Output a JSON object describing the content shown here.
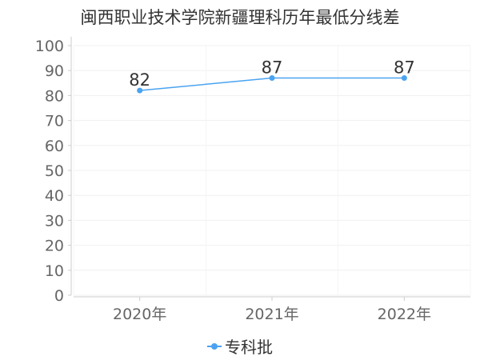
{
  "chart_data": {
    "type": "line",
    "title": "闽西职业技术学院新疆理科历年最低分线差",
    "xlabel": "",
    "ylabel": "",
    "categories": [
      "2020年",
      "2021年",
      "2022年"
    ],
    "ylim": [
      0,
      100
    ],
    "yticks": [
      "0",
      "10",
      "20",
      "30",
      "40",
      "50",
      "60",
      "70",
      "80",
      "90",
      "100"
    ],
    "grid": true,
    "legend_position": "bottom",
    "series": [
      {
        "name": "专科批",
        "values": [
          82,
          87,
          87
        ],
        "labels": [
          "82",
          "87",
          "87"
        ],
        "color": "#4aa3f0"
      }
    ]
  }
}
